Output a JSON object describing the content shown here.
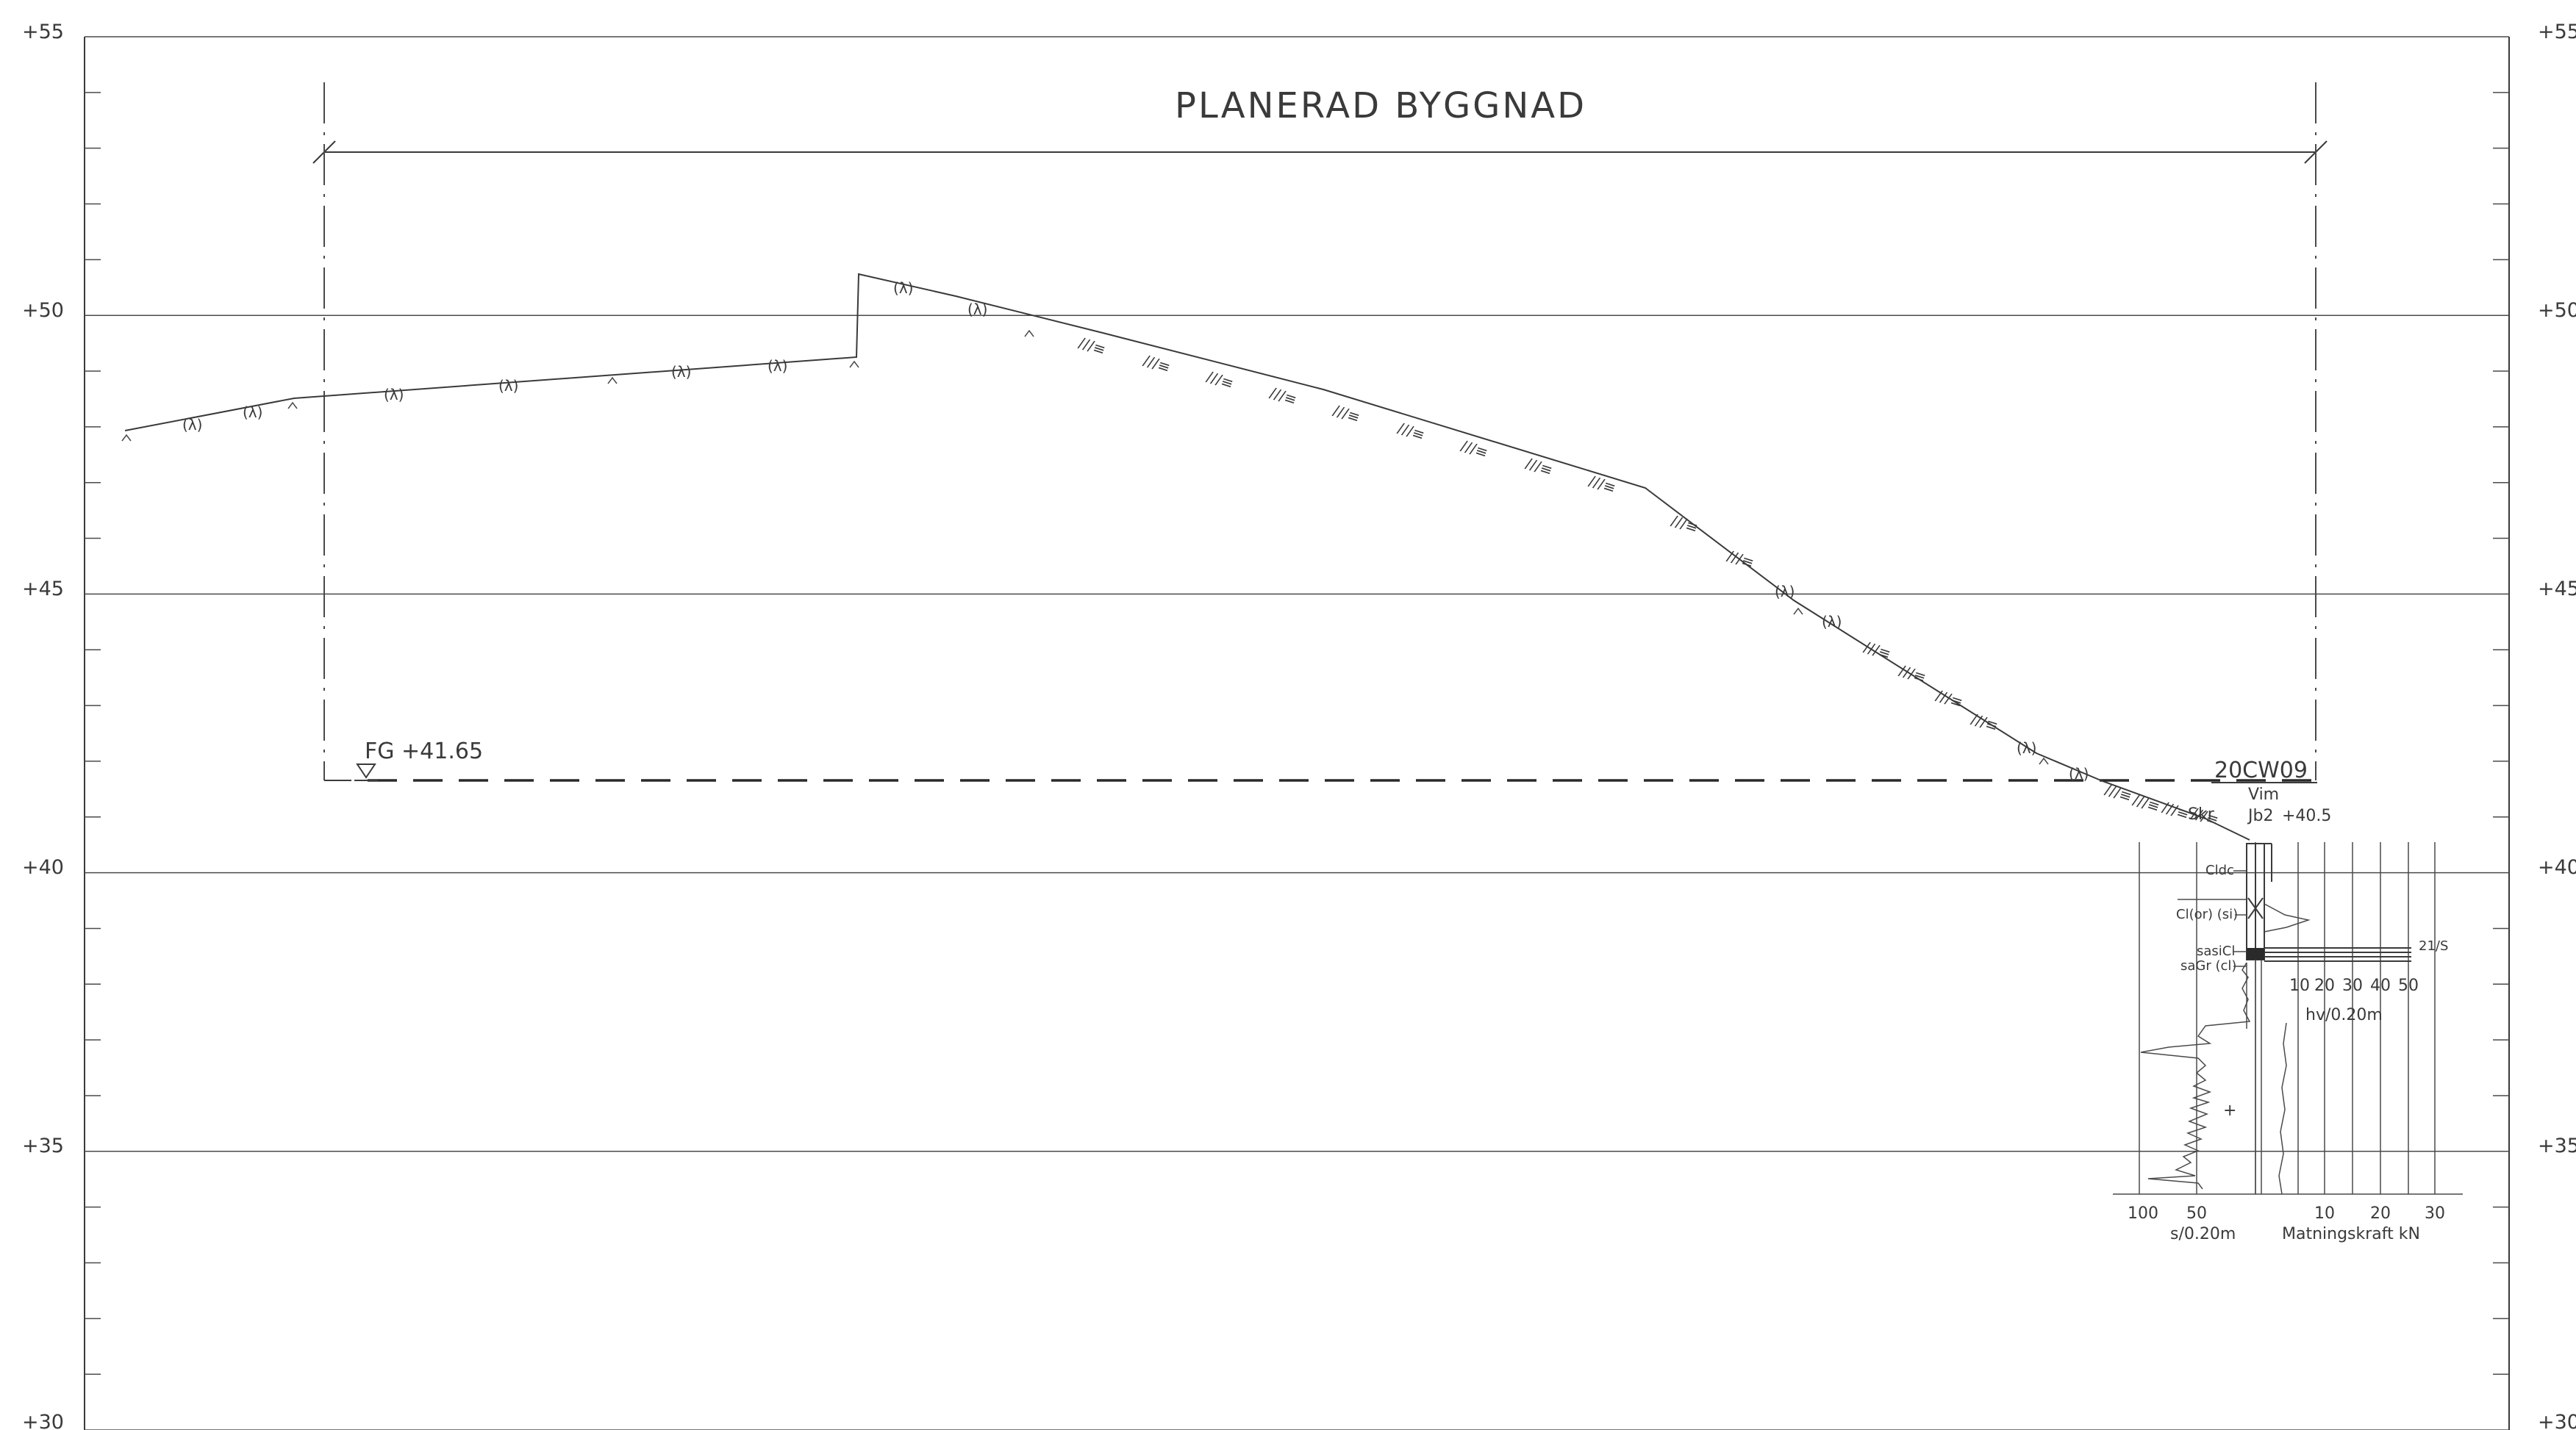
{
  "title": "PLANERAD BYGGNAD",
  "elevation_labels": [
    "+55",
    "+50",
    "+45",
    "+40",
    "+35",
    "+30"
  ],
  "elevations": [
    55,
    50,
    45,
    40,
    35,
    30
  ],
  "grade_marker": {
    "label": "FG +41.65",
    "elevation": 41.65
  },
  "borehole": {
    "id": "20CW09",
    "method_left": "Skr",
    "method_right": "Vim",
    "method_code": "Jb2",
    "start_elevation": "+40.5",
    "soil_layers": [
      "Cldc",
      "Cl(or) (si)",
      "sasiCl",
      "saGr (cl)"
    ],
    "stop_note": "21/S",
    "hv_scale": [
      "10",
      "20",
      "30",
      "40",
      "50"
    ],
    "hv_unit": "hv/0.20m",
    "s_scale": [
      "100",
      "50"
    ],
    "s_unit": "s/0.20m",
    "force_scale": [
      "10",
      "20",
      "30"
    ],
    "force_unit": "Matningskraft kN",
    "plus_mark": "+"
  },
  "soil_symbols": {
    "fill": "(λ)",
    "clay": "///≡"
  }
}
